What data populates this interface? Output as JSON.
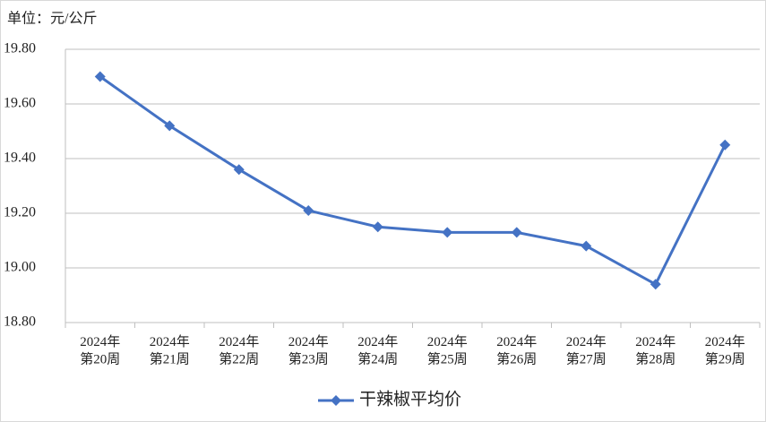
{
  "chart_data": {
    "type": "line",
    "unit_label": "单位：元/公斤",
    "categories": [
      "2024年\n第20周",
      "2024年\n第21周",
      "2024年\n第22周",
      "2024年\n第23周",
      "2024年\n第24周",
      "2024年\n第25周",
      "2024年\n第26周",
      "2024年\n第27周",
      "2024年\n第28周",
      "2024年\n第29周"
    ],
    "series": [
      {
        "name": "干辣椒平均价",
        "color": "#4472c4",
        "values": [
          19.7,
          19.52,
          19.36,
          19.21,
          19.15,
          19.13,
          19.13,
          19.08,
          18.94,
          19.45
        ]
      }
    ],
    "ylim": [
      18.8,
      19.8
    ],
    "yticks": [
      {
        "value": 18.8,
        "label": "18.80"
      },
      {
        "value": 19.0,
        "label": "19.00"
      },
      {
        "value": 19.2,
        "label": "19.20"
      },
      {
        "value": 19.4,
        "label": "19.40"
      },
      {
        "value": 19.6,
        "label": "19.60"
      },
      {
        "value": 19.8,
        "label": "19.80"
      }
    ],
    "grid": true,
    "legend": "bottom"
  }
}
